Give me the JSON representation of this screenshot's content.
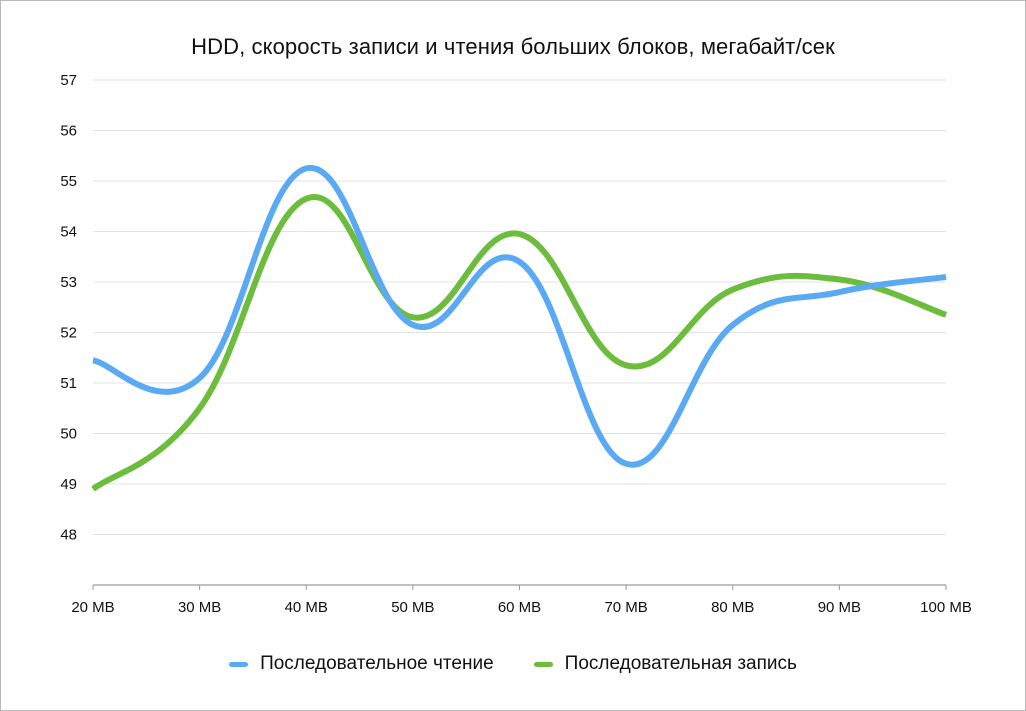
{
  "chart_data": {
    "type": "line",
    "title": "HDD, скорость записи и чтения больших блоков, мегабайт/сек",
    "xlabel": "",
    "ylabel": "",
    "categories": [
      "20 MB",
      "30 MB",
      "40 MB",
      "50 MB",
      "60 MB",
      "70 MB",
      "80 MB",
      "90 MB",
      "100 MB"
    ],
    "yticks": [
      "48",
      "49",
      "50",
      "51",
      "52",
      "53",
      "54",
      "55",
      "56",
      "57"
    ],
    "ylim": [
      47,
      57
    ],
    "grid": true,
    "legend_position": "bottom",
    "series": [
      {
        "name": "Последовательное чтение",
        "color": "#5aa9f3",
        "values": [
          51.45,
          51.1,
          55.25,
          52.15,
          53.4,
          49.4,
          52.15,
          52.8,
          53.1
        ]
      },
      {
        "name": "Последовательная запись",
        "color": "#6cbd3e",
        "values": [
          48.9,
          50.5,
          54.65,
          52.3,
          53.95,
          51.35,
          52.85,
          53.05,
          52.35
        ]
      }
    ]
  }
}
